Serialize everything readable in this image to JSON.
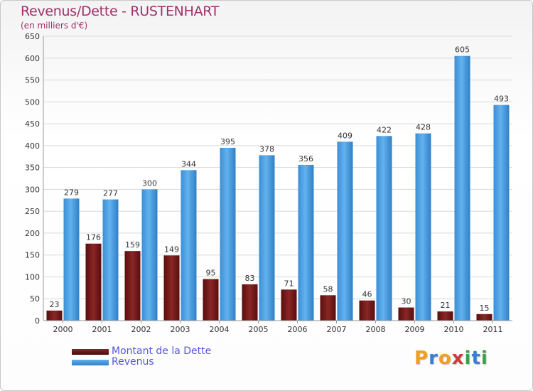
{
  "chart_data": {
    "type": "bar",
    "title": "Revenus/Dette - RUSTENHART",
    "subtitle": "(en milliers d'€)",
    "xlabel": "",
    "ylabel": "",
    "ylim": [
      0,
      650
    ],
    "yticks": [
      0,
      50,
      100,
      150,
      200,
      250,
      300,
      350,
      400,
      450,
      500,
      550,
      600,
      650
    ],
    "categories": [
      "2000",
      "2001",
      "2002",
      "2003",
      "2004",
      "2005",
      "2006",
      "2007",
      "2008",
      "2009",
      "2010",
      "2011"
    ],
    "series": [
      {
        "name": "Montant de la Dette",
        "color": "#7a1f1f",
        "values": [
          23,
          176,
          159,
          149,
          95,
          83,
          71,
          58,
          46,
          30,
          21,
          15
        ]
      },
      {
        "name": "Revenus",
        "color": "#4fa3e3",
        "values": [
          279,
          277,
          300,
          344,
          395,
          378,
          356,
          409,
          422,
          428,
          605,
          493
        ]
      }
    ],
    "legend_position": "bottom-left"
  },
  "logo": {
    "letters": [
      {
        "ch": "P",
        "color": "#f0a020"
      },
      {
        "ch": "r",
        "color": "#3a7fd0"
      },
      {
        "ch": "o",
        "color": "#f0a020"
      },
      {
        "ch": "x",
        "color": "#d03a3a"
      },
      {
        "ch": "i",
        "color": "#3aa04a"
      },
      {
        "ch": "t",
        "color": "#3a7fd0"
      },
      {
        "ch": "i",
        "color": "#3aa04a"
      }
    ]
  }
}
